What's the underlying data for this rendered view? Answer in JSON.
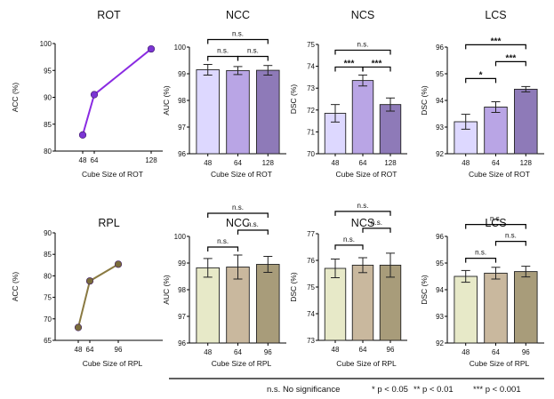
{
  "legend": {
    "ns": "n.s.  No significance",
    "p05": "*  p < 0.05",
    "p01": "**  p < 0.01",
    "p001": "***  p < 0.001"
  },
  "colors": {
    "rot_line": "#8a2be2",
    "rot_point": "#7b35d3",
    "rpl_line": "#8a7a42",
    "rpl_point": "#7a6c3a",
    "rot_bars": [
      "#ddd8ff",
      "#b9a5e5",
      "#8e7ab8"
    ],
    "rpl_bars": [
      "#e7e9c8",
      "#c9b89e",
      "#a89c7a"
    ]
  },
  "chart_data": [
    {
      "id": "rot-line",
      "type": "line",
      "title": "ROT",
      "xlabel": "Cube Size of ROT",
      "ylabel": "ACC (%)",
      "x": [
        48,
        64,
        128
      ],
      "xticks": [
        "48",
        "64",
        "128"
      ],
      "y": [
        83.0,
        90.5,
        99.0
      ],
      "ylim": [
        80,
        100
      ],
      "yticks": [
        80,
        85,
        90,
        95,
        100
      ],
      "ytick_labels": [
        "80",
        "85",
        "90",
        "95",
        "100"
      ]
    },
    {
      "id": "rot-ncc",
      "type": "bar",
      "title": "NCC",
      "xlabel": "Cube Size of ROT",
      "ylabel": "AUC (%)",
      "categories": [
        "48",
        "64",
        "128"
      ],
      "values": [
        99.15,
        99.12,
        99.13
      ],
      "errors": [
        0.2,
        0.15,
        0.18
      ],
      "ylim": [
        96,
        100
      ],
      "yticks": [
        96,
        97,
        98,
        99,
        100
      ],
      "ytick_labels": [
        "96",
        "97",
        "98",
        "99",
        "100"
      ],
      "annotations": [
        {
          "pair": [
            0,
            1
          ],
          "label": "n.s.",
          "level": 1
        },
        {
          "pair": [
            1,
            2
          ],
          "label": "n.s.",
          "level": 1
        },
        {
          "pair": [
            0,
            2
          ],
          "label": "n.s.",
          "level": 2
        }
      ]
    },
    {
      "id": "rot-ncs",
      "type": "bar",
      "title": "NCS",
      "xlabel": "Cube Size of ROT",
      "ylabel": "DSC (%)",
      "categories": [
        "48",
        "64",
        "128"
      ],
      "values": [
        71.85,
        73.35,
        72.25
      ],
      "errors": [
        0.4,
        0.25,
        0.3
      ],
      "ylim": [
        70,
        75
      ],
      "yticks": [
        70,
        71,
        72,
        73,
        74,
        75
      ],
      "ytick_labels": [
        "70",
        "71",
        "72",
        "73",
        "74",
        "75"
      ],
      "annotations": [
        {
          "pair": [
            0,
            1
          ],
          "label": "***",
          "level": 1
        },
        {
          "pair": [
            1,
            2
          ],
          "label": "***",
          "level": 1
        },
        {
          "pair": [
            0,
            2
          ],
          "label": "n.s.",
          "level": 2
        }
      ]
    },
    {
      "id": "rot-lcs",
      "type": "bar",
      "title": "LCS",
      "xlabel": "Cube Size of ROT",
      "ylabel": "DSC (%)",
      "categories": [
        "48",
        "64",
        "128"
      ],
      "values": [
        93.2,
        93.75,
        94.42
      ],
      "errors": [
        0.28,
        0.2,
        0.1
      ],
      "ylim": [
        92,
        96
      ],
      "yticks": [
        92,
        93,
        94,
        95,
        96
      ],
      "ytick_labels": [
        "92",
        "93",
        "94",
        "95",
        "96"
      ],
      "annotations": [
        {
          "pair": [
            0,
            1
          ],
          "label": "*",
          "level": 1
        },
        {
          "pair": [
            1,
            2
          ],
          "label": "***",
          "level": 2
        },
        {
          "pair": [
            0,
            2
          ],
          "label": "***",
          "level": 3
        }
      ]
    },
    {
      "id": "rpl-line",
      "type": "line",
      "title": "RPL",
      "xlabel": "Cube Size of RPL",
      "ylabel": "ACC (%)",
      "x": [
        48,
        64,
        96
      ],
      "xticks": [
        "48",
        "64",
        "96"
      ],
      "y": [
        68.0,
        78.8,
        82.7
      ],
      "ylim": [
        65,
        90
      ],
      "yticks": [
        65,
        70,
        75,
        80,
        85,
        90
      ],
      "ytick_labels": [
        "65",
        "70",
        "75",
        "80",
        "85",
        "90"
      ]
    },
    {
      "id": "rpl-ncc",
      "type": "bar",
      "title": "NCC",
      "xlabel": "Cube Size of RPL",
      "ylabel": "AUC (%)",
      "categories": [
        "48",
        "64",
        "96"
      ],
      "values": [
        98.82,
        98.85,
        98.95
      ],
      "errors": [
        0.35,
        0.45,
        0.3
      ],
      "ylim": [
        96,
        100
      ],
      "yticks": [
        96,
        97,
        98,
        99,
        100
      ],
      "ytick_labels": [
        "96",
        "97",
        "98",
        "99",
        "100"
      ],
      "annotations": [
        {
          "pair": [
            0,
            1
          ],
          "label": "n.s.",
          "level": 1
        },
        {
          "pair": [
            1,
            2
          ],
          "label": "n.s.",
          "level": 2
        },
        {
          "pair": [
            0,
            2
          ],
          "label": "n.s.",
          "level": 3
        }
      ]
    },
    {
      "id": "rpl-ncs",
      "type": "bar",
      "title": "NCS",
      "xlabel": "Cube Size of RPL",
      "ylabel": "DSC (%)",
      "categories": [
        "48",
        "64",
        "96"
      ],
      "values": [
        75.7,
        75.82,
        75.82
      ],
      "errors": [
        0.35,
        0.28,
        0.45
      ],
      "ylim": [
        73,
        77
      ],
      "yticks": [
        73,
        74,
        75,
        76,
        77
      ],
      "ytick_labels": [
        "73",
        "74",
        "75",
        "76",
        "77"
      ],
      "annotations": [
        {
          "pair": [
            0,
            1
          ],
          "label": "n.s.",
          "level": 1
        },
        {
          "pair": [
            1,
            2
          ],
          "label": "n.s.",
          "level": 2
        },
        {
          "pair": [
            0,
            2
          ],
          "label": "n.s.",
          "level": 3
        }
      ]
    },
    {
      "id": "rpl-lcs",
      "type": "bar",
      "title": "LCS",
      "xlabel": "Cube Size of RPL",
      "ylabel": "DSC (%)",
      "categories": [
        "48",
        "64",
        "96"
      ],
      "values": [
        94.5,
        94.62,
        94.68
      ],
      "errors": [
        0.22,
        0.22,
        0.2
      ],
      "ylim": [
        92,
        96
      ],
      "yticks": [
        92,
        93,
        94,
        95,
        96
      ],
      "ytick_labels": [
        "92",
        "93",
        "94",
        "95",
        "96"
      ],
      "annotations": [
        {
          "pair": [
            0,
            1
          ],
          "label": "n.s.",
          "level": 1
        },
        {
          "pair": [
            1,
            2
          ],
          "label": "n.s.",
          "level": 2
        },
        {
          "pair": [
            0,
            2
          ],
          "label": "n.s.",
          "level": 3
        }
      ]
    }
  ]
}
